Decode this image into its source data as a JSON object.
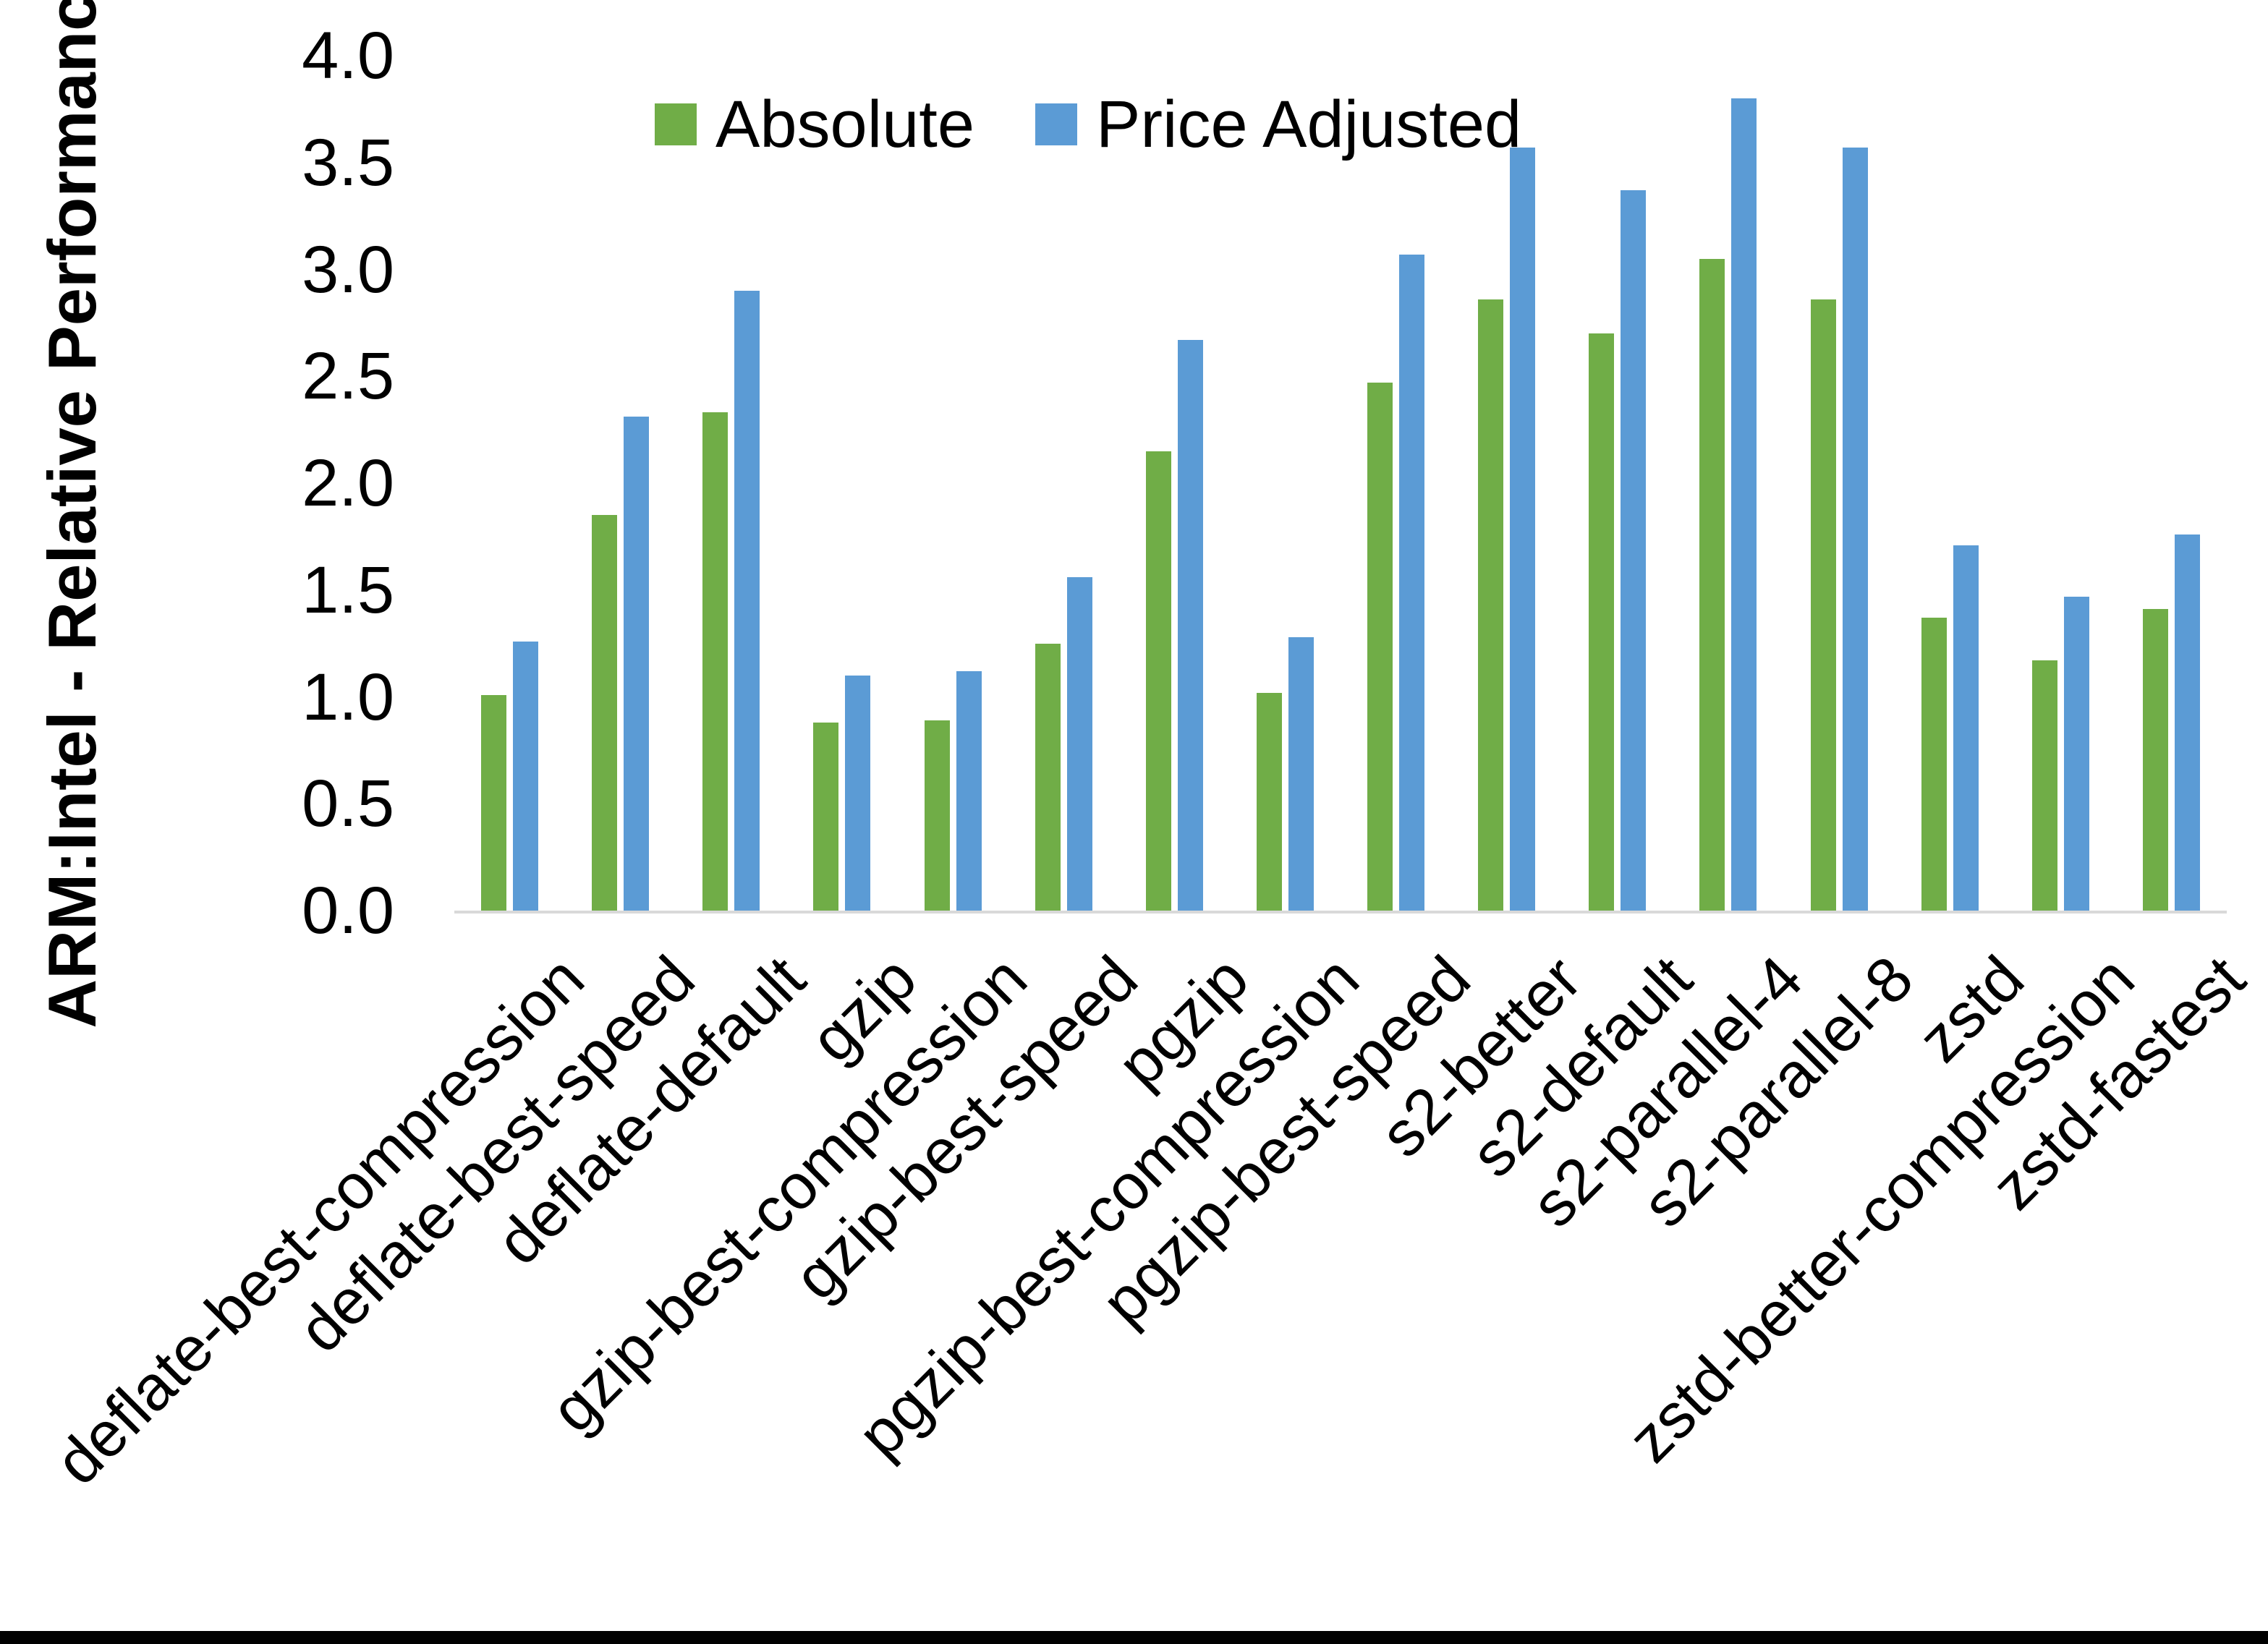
{
  "figure": {
    "background_color": "#ffffff",
    "bottom_border_color": "#000000",
    "axis_line_color": "#d9d9d9"
  },
  "legend": {
    "items": [
      {
        "label": "Absolute",
        "color": "#70AD47"
      },
      {
        "label": "Price Adjusted",
        "color": "#5B9BD5"
      }
    ]
  },
  "chart_data": {
    "type": "bar",
    "title": "",
    "xlabel": "",
    "ylabel": "ARM:Intel - Relative Performance",
    "ylim": [
      0.0,
      4.0
    ],
    "ytick_labels": [
      "0.0",
      "0.5",
      "1.0",
      "1.5",
      "2.0",
      "2.5",
      "3.0",
      "3.5",
      "4.0"
    ],
    "grid": false,
    "legend_position": "top-center",
    "categories": [
      "deflate-best-compression",
      "deflate-best-speed",
      "deflate-default",
      "gzip",
      "gzip-best-compression",
      "gzip-best-speed",
      "pgzip",
      "pgzip-best-compression",
      "pgzip-best-speed",
      "s2-better",
      "s2-default",
      "s2-parallel-4",
      "s2-parallel-8",
      "zstd",
      "zstd-better-compression",
      "zstd-fastest"
    ],
    "series": [
      {
        "name": "Absolute",
        "color": "#70AD47",
        "values": [
          1.01,
          1.85,
          2.33,
          0.88,
          0.89,
          1.25,
          2.15,
          1.02,
          2.47,
          2.86,
          2.7,
          3.05,
          2.86,
          1.37,
          1.17,
          1.41
        ]
      },
      {
        "name": "Price Adjusted",
        "color": "#5B9BD5",
        "values": [
          1.26,
          2.31,
          2.9,
          1.1,
          1.12,
          1.56,
          2.67,
          1.28,
          3.07,
          3.57,
          3.37,
          3.8,
          3.57,
          1.71,
          1.47,
          1.76
        ]
      }
    ]
  }
}
